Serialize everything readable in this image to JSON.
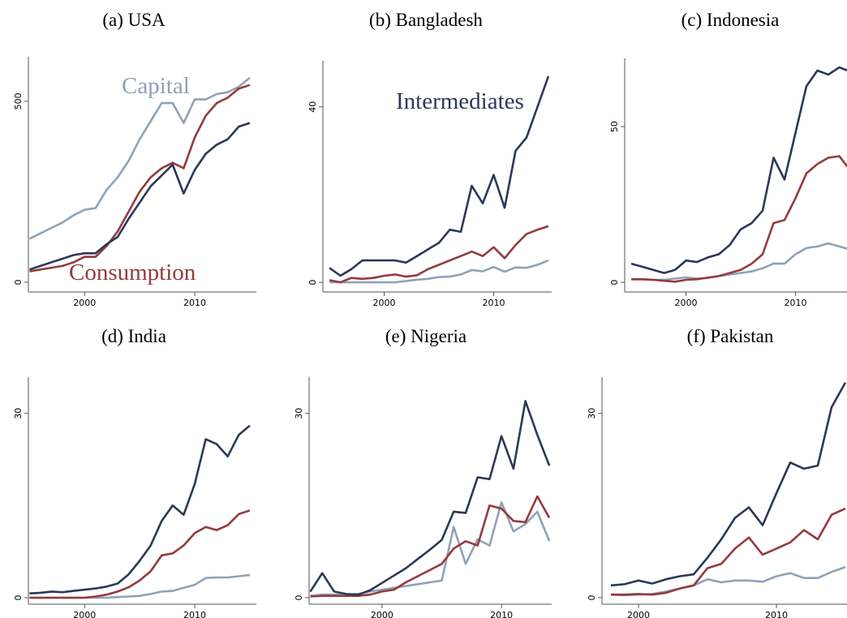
{
  "chart_data": [
    {
      "type": "line",
      "title": "(a) USA",
      "x": [
        1995,
        1996,
        1997,
        1998,
        1999,
        2000,
        2001,
        2002,
        2003,
        2004,
        2005,
        2006,
        2007,
        2008,
        2009,
        2010,
        2011,
        2012,
        2013,
        2014,
        2015
      ],
      "xlim": [
        1994.9,
        2015.6
      ],
      "xticks": [
        2000,
        2010
      ],
      "ylim": [
        -27,
        623
      ],
      "yticks": [
        0,
        500
      ],
      "series": [
        {
          "name": "Capital",
          "color": "#8fa2b6",
          "values": [
            120,
            135,
            150,
            165,
            185,
            200,
            205,
            255,
            290,
            335,
            395,
            445,
            495,
            495,
            440,
            505,
            505,
            520,
            525,
            540,
            565
          ]
        },
        {
          "name": "Consumption",
          "color": "#953a3c",
          "values": [
            30,
            35,
            40,
            45,
            55,
            70,
            70,
            100,
            140,
            195,
            250,
            290,
            315,
            330,
            315,
            400,
            460,
            495,
            510,
            535,
            545
          ]
        },
        {
          "color": "#2c3857",
          "values": [
            35,
            45,
            55,
            65,
            75,
            80,
            80,
            105,
            125,
            175,
            220,
            265,
            295,
            325,
            245,
            310,
            355,
            380,
            395,
            430,
            440
          ]
        }
      ]
    },
    {
      "type": "line",
      "title": "(b) Bangladesh",
      "x": [
        1995,
        1996,
        1997,
        1998,
        1999,
        2000,
        2001,
        2002,
        2003,
        2004,
        2005,
        2006,
        2007,
        2008,
        2009,
        2010,
        2011,
        2012,
        2013,
        2014,
        2015
      ],
      "xlim": [
        1994.4,
        2015.3
      ],
      "xticks": [
        2000,
        2010
      ],
      "ylim": [
        -2.2,
        50.5
      ],
      "yticks": [
        0,
        40
      ],
      "series": [
        {
          "color": "#8fa2b6",
          "values": [
            0,
            0,
            0,
            0,
            0,
            0,
            0,
            0.3,
            0.6,
            0.8,
            1.2,
            1.3,
            1.8,
            2.8,
            2.5,
            3.5,
            2.4,
            3.4,
            3.3,
            4,
            5
          ]
        },
        {
          "color": "#953a3c",
          "values": [
            0.5,
            0,
            1,
            0.8,
            1,
            1.5,
            1.8,
            1.3,
            1.6,
            3,
            4,
            5,
            6,
            7,
            6,
            8,
            5.5,
            8.5,
            11,
            12,
            12.8
          ]
        },
        {
          "name": "Intermediates",
          "color": "#2c3857",
          "values": [
            3.3,
            1.5,
            3,
            5,
            5,
            5,
            5,
            4.5,
            6,
            7.5,
            9,
            12,
            11.5,
            22,
            18,
            24.5,
            17,
            30,
            33,
            40,
            47
          ]
        }
      ]
    },
    {
      "type": "line",
      "title": "(c) Indonesia",
      "x": [
        1995,
        1996,
        1997,
        1998,
        1999,
        2000,
        2001,
        2002,
        2003,
        2004,
        2005,
        2006,
        2007,
        2008,
        2009,
        2010,
        2011,
        2012,
        2013,
        2014,
        2015
      ],
      "xlim": [
        1994.4,
        2015.3
      ],
      "xticks": [
        2000,
        2010
      ],
      "ylim": [
        -3.1,
        71.9
      ],
      "yticks": [
        0,
        50
      ],
      "series": [
        {
          "color": "#8fa2b6",
          "values": [
            1,
            1,
            0.8,
            0.8,
            1.2,
            1.6,
            1.2,
            1.4,
            2,
            2.5,
            3,
            3.5,
            4.5,
            6,
            6,
            9,
            11,
            11.5,
            12.5,
            11.5,
            10.5
          ]
        },
        {
          "color": "#953a3c",
          "values": [
            1,
            1,
            0.8,
            0.5,
            0.2,
            0.8,
            1,
            1.5,
            2,
            3,
            4,
            6,
            9,
            19,
            20,
            27,
            35,
            38,
            40,
            40.5,
            36
          ]
        },
        {
          "color": "#2c3857",
          "values": [
            6,
            5,
            4,
            3,
            4,
            7,
            6.5,
            8,
            9,
            12,
            17,
            19,
            23,
            40,
            33,
            48,
            63,
            68,
            66.7,
            69,
            67.7
          ]
        }
      ]
    },
    {
      "type": "line",
      "title": "(d) India",
      "x": [
        1995,
        1996,
        1997,
        1998,
        1999,
        2000,
        2001,
        2002,
        2003,
        2004,
        2005,
        2006,
        2007,
        2008,
        2009,
        2010,
        2011,
        2012,
        2013,
        2014,
        2015
      ],
      "xlim": [
        1994.9,
        2015.6
      ],
      "xticks": [
        2000,
        2010
      ],
      "ylim": [
        -1.06,
        35.9
      ],
      "yticks": [
        0,
        30
      ],
      "series": [
        {
          "color": "#8fa2b6",
          "values": [
            0,
            0,
            0,
            0,
            0,
            0,
            0,
            0,
            0.1,
            0.2,
            0.3,
            0.6,
            1,
            1.1,
            1.6,
            2.1,
            3.2,
            3.3,
            3.3,
            3.5,
            3.7
          ]
        },
        {
          "color": "#953a3c",
          "values": [
            0,
            0,
            0,
            0,
            0,
            0,
            0.2,
            0.5,
            1,
            1.7,
            2.8,
            4.3,
            6.9,
            7.2,
            8.5,
            10.5,
            11.5,
            11,
            11.8,
            13.6,
            14.2
          ]
        },
        {
          "color": "#2c3857",
          "values": [
            0.7,
            0.8,
            1,
            0.9,
            1.1,
            1.3,
            1.5,
            1.8,
            2.3,
            3.8,
            6,
            8.5,
            12.5,
            15,
            13.5,
            18.5,
            25.8,
            25,
            23,
            26.5,
            28
          ]
        }
      ]
    },
    {
      "type": "line",
      "title": "(e) Nigeria",
      "x": [
        1994,
        1995,
        1996,
        1997,
        1998,
        1999,
        2000,
        2001,
        2002,
        2003,
        2004,
        2005,
        2006,
        2007,
        2008,
        2009,
        2010,
        2011,
        2012,
        2013,
        2014
      ],
      "xlim": [
        1993.9,
        2014.2
      ],
      "xticks": [
        2000,
        2010
      ],
      "ylim": [
        -1.06,
        35.9
      ],
      "yticks": [
        0,
        30
      ],
      "series": [
        {
          "color": "#8fa2b6",
          "values": [
            0.3,
            0.5,
            0.5,
            0.5,
            0.6,
            1,
            1.3,
            1.6,
            1.9,
            2.2,
            2.5,
            2.8,
            11.5,
            5.5,
            9.5,
            8.5,
            15.5,
            10.8,
            12,
            14,
            9.2
          ]
        },
        {
          "color": "#953a3c",
          "values": [
            0.2,
            0.3,
            0.3,
            0.3,
            0.3,
            0.5,
            1,
            1.3,
            2.5,
            3.5,
            4.5,
            5.5,
            8,
            9.2,
            8.5,
            15,
            14.5,
            12.5,
            12.3,
            16.5,
            13
          ]
        },
        {
          "color": "#2c3857",
          "values": [
            1,
            4,
            1,
            0.6,
            0.5,
            1.2,
            2.4,
            3.6,
            4.8,
            6.3,
            7.8,
            9.4,
            14,
            13.8,
            19.6,
            19.3,
            26.3,
            21,
            32,
            26.5,
            21.5
          ]
        }
      ]
    },
    {
      "type": "line",
      "title": "(f) Pakistan",
      "x": [
        1998,
        1999,
        2000,
        2001,
        2002,
        2003,
        2004,
        2005,
        2006,
        2007,
        2008,
        2009,
        2010,
        2011,
        2012,
        2013,
        2014,
        2015
      ],
      "xlim": [
        1997.35,
        2015.47
      ],
      "xticks": [
        2000,
        2010
      ],
      "ylim": [
        -1.06,
        35.9
      ],
      "yticks": [
        0,
        30
      ],
      "series": [
        {
          "color": "#8fa2b6",
          "values": [
            0.5,
            0.4,
            0.5,
            0.6,
            1,
            1.5,
            2,
            3,
            2.5,
            2.8,
            2.8,
            2.6,
            3.5,
            4,
            3.2,
            3.2,
            4.2,
            5
          ]
        },
        {
          "color": "#953a3c",
          "values": [
            0.5,
            0.5,
            0.6,
            0.5,
            0.8,
            1.5,
            2,
            4.8,
            5.5,
            8,
            9.8,
            7,
            8,
            9,
            11,
            9.5,
            13.5,
            14.5
          ]
        },
        {
          "color": "#2c3857",
          "values": [
            2,
            2.2,
            2.8,
            2.3,
            3,
            3.5,
            3.8,
            6.5,
            9.5,
            13,
            14.7,
            11.8,
            17,
            22,
            21,
            21.5,
            31,
            35
          ]
        }
      ]
    }
  ]
}
